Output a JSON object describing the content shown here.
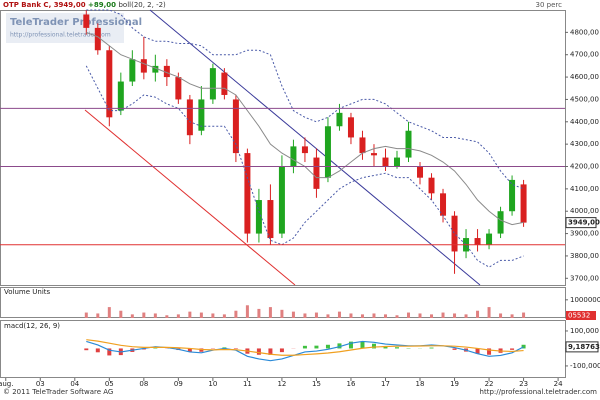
{
  "header": {
    "symbol": "OTP Bank C",
    "last": "3949,00",
    "change": "+89,00",
    "indicator": "boll(20, 2, -2)",
    "interval": "30 perc"
  },
  "watermark": {
    "brand": "TeleTrader Professional",
    "url": "http://professional.teletrader.com"
  },
  "footer": {
    "copyright": "© 2011 TeleTrader Software AG",
    "url": "http://professional.teletrader.com"
  },
  "chart_data": [
    {
      "type": "candlestick",
      "last_label": "3949,00",
      "x": [
        4,
        5,
        6,
        7,
        8,
        9,
        10,
        11,
        12,
        13,
        14,
        15,
        16,
        17,
        18,
        19,
        20,
        21,
        22,
        23,
        24,
        25,
        26,
        27,
        28,
        29,
        30,
        31,
        32,
        33,
        34,
        35,
        36,
        37,
        38,
        39,
        40,
        41,
        42
      ],
      "open": [
        4880,
        4820,
        4720,
        4450,
        4580,
        4680,
        4620,
        4650,
        4600,
        4500,
        4360,
        4500,
        4620,
        4500,
        4260,
        3900,
        4050,
        3900,
        4200,
        4290,
        4240,
        4150,
        4380,
        4420,
        4330,
        4260,
        4240,
        4200,
        4240,
        4200,
        4150,
        4080,
        3980,
        3820,
        3880,
        3850,
        3900,
        4000,
        4120
      ],
      "high": [
        4900,
        4840,
        4740,
        4620,
        4720,
        4780,
        4700,
        4680,
        4620,
        4520,
        4560,
        4660,
        4640,
        4520,
        4280,
        4100,
        4120,
        4250,
        4320,
        4330,
        4280,
        4420,
        4480,
        4440,
        4360,
        4300,
        4280,
        4270,
        4400,
        4220,
        4170,
        4100,
        4000,
        3920,
        3920,
        3920,
        4020,
        4160,
        4140
      ],
      "low": [
        4790,
        4700,
        4380,
        4430,
        4560,
        4590,
        4580,
        4560,
        4480,
        4300,
        4340,
        4480,
        4500,
        4220,
        3860,
        3860,
        3850,
        3880,
        4170,
        4220,
        4060,
        4130,
        4360,
        4300,
        4230,
        4200,
        4180,
        4190,
        4220,
        4120,
        4050,
        3950,
        3720,
        3790,
        3820,
        3830,
        3880,
        3980,
        3930
      ],
      "close": [
        4820,
        4720,
        4420,
        4580,
        4680,
        4620,
        4650,
        4600,
        4500,
        4340,
        4500,
        4640,
        4520,
        4260,
        3900,
        4050,
        3880,
        4200,
        4290,
        4260,
        4100,
        4380,
        4440,
        4330,
        4260,
        4250,
        4200,
        4240,
        4360,
        4150,
        4080,
        3980,
        3820,
        3880,
        3850,
        3900,
        4000,
        4140,
        3949
      ],
      "up_color": "#1fa51f",
      "down_color": "#d92020",
      "bollinger": [
        {
          "color": "#4a5aa8",
          "dashed": true,
          "values": [
            4900,
            4900,
            4900,
            4880,
            4820,
            4780,
            4760,
            4760,
            4750,
            4750,
            4740,
            4700,
            4700,
            4700,
            4720,
            4720,
            4700,
            4560,
            4450,
            4420,
            4400,
            4420,
            4460,
            4480,
            4500,
            4500,
            4480,
            4440,
            4400,
            4380,
            4360,
            4330,
            4330,
            4320,
            4310,
            4260,
            4180,
            4120,
            4100
          ]
        },
        {
          "color": "#8a8a8a",
          "dashed": false,
          "values": [
            4800,
            4780,
            4740,
            4700,
            4680,
            4660,
            4640,
            4620,
            4600,
            4570,
            4550,
            4550,
            4550,
            4520,
            4450,
            4380,
            4300,
            4260,
            4230,
            4200,
            4150,
            4150,
            4180,
            4220,
            4260,
            4280,
            4290,
            4280,
            4280,
            4270,
            4250,
            4220,
            4180,
            4120,
            4050,
            4000,
            3960,
            3940,
            3950
          ]
        },
        {
          "color": "#4a5aa8",
          "dashed": true,
          "values": [
            4650,
            4550,
            4450,
            4450,
            4480,
            4520,
            4510,
            4480,
            4460,
            4400,
            4380,
            4380,
            4380,
            4300,
            4150,
            4000,
            3870,
            3850,
            3880,
            3950,
            4000,
            4050,
            4100,
            4130,
            4150,
            4160,
            4170,
            4150,
            4150,
            4100,
            4050,
            3980,
            3900,
            3850,
            3780,
            3750,
            3780,
            3780,
            3800
          ]
        }
      ],
      "hlines": [
        {
          "value": 4460,
          "color": "#8b4a8b"
        },
        {
          "value": 4200,
          "color": "#8b4a8b"
        },
        {
          "value": 3850,
          "color": "#e03030"
        }
      ],
      "xlim": [
        -3.5,
        45.6
      ],
      "ylim": [
        3670,
        4900
      ],
      "yticks": [
        {
          "value": 4800,
          "label": "4800,00"
        },
        {
          "value": 4700,
          "label": "4700,00"
        },
        {
          "value": 4600,
          "label": "4600,00"
        },
        {
          "value": 4500,
          "label": "4500,00"
        },
        {
          "value": 4400,
          "label": "4400,00"
        },
        {
          "value": 4300,
          "label": "4300,00"
        },
        {
          "value": 4200,
          "label": "4200,00"
        },
        {
          "value": 4100,
          "label": "4100,00"
        },
        {
          "value": 4000,
          "label": "4000,00"
        },
        {
          "value": 3900,
          "label": "3900,00"
        },
        {
          "value": 3800,
          "label": "3800,00"
        },
        {
          "value": 3700,
          "label": "3700,00"
        }
      ]
    },
    {
      "type": "bar",
      "title": "Volume Units",
      "color": "#e08080",
      "last_label": "05532",
      "x": [
        4,
        5,
        6,
        7,
        8,
        9,
        10,
        11,
        12,
        13,
        14,
        15,
        16,
        17,
        18,
        19,
        20,
        21,
        22,
        23,
        24,
        25,
        26,
        27,
        28,
        29,
        30,
        31,
        32,
        33,
        34,
        35,
        36,
        37,
        38,
        39,
        40,
        41,
        42
      ],
      "values": [
        300000,
        250000,
        600000,
        400000,
        200000,
        300000,
        250000,
        150000,
        200000,
        350000,
        300000,
        250000,
        200000,
        400000,
        700000,
        500000,
        600000,
        450000,
        350000,
        250000,
        300000,
        200000,
        350000,
        250000,
        200000,
        250000,
        200000,
        150000,
        300000,
        250000,
        200000,
        300000,
        250000,
        200000,
        400000,
        600000,
        250000,
        200000,
        300000
      ],
      "xlim": [
        -3.5,
        45.6
      ],
      "ylim": [
        0,
        1650000
      ],
      "yticks": [
        1000000,
        0
      ]
    },
    {
      "type": "macd",
      "title": "macd(12, 26, 9)",
      "last_label": "9,18763",
      "x": [
        4,
        5,
        6,
        7,
        8,
        9,
        10,
        11,
        12,
        13,
        14,
        15,
        16,
        17,
        18,
        19,
        20,
        21,
        22,
        23,
        24,
        25,
        26,
        27,
        28,
        29,
        30,
        31,
        32,
        33,
        34,
        35,
        36,
        37,
        38,
        39,
        40,
        41,
        42
      ],
      "series": [
        {
          "color": "#2a8ad8",
          "values": [
            40,
            20,
            -10,
            -20,
            -10,
            0,
            10,
            5,
            -5,
            -20,
            -25,
            -10,
            0,
            -10,
            -45,
            -60,
            -70,
            -60,
            -40,
            -20,
            -15,
            -5,
            10,
            30,
            40,
            35,
            25,
            20,
            15,
            15,
            20,
            15,
            5,
            -10,
            -30,
            -45,
            -40,
            -25,
            9
          ]
        },
        {
          "color": "#f0a020",
          "values": [
            50,
            42,
            30,
            18,
            10,
            6,
            6,
            6,
            4,
            0,
            -6,
            -8,
            -6,
            -7,
            -15,
            -24,
            -33,
            -39,
            -39,
            -35,
            -31,
            -26,
            -19,
            -9,
            1,
            8,
            11,
            13,
            13,
            14,
            15,
            15,
            13,
            8,
            0,
            -9,
            -15,
            -17,
            -12
          ]
        }
      ],
      "histogram": [
        -10,
        -22,
        -40,
        -38,
        -20,
        -6,
        4,
        -1,
        -9,
        -20,
        -19,
        -2,
        6,
        -3,
        -30,
        -36,
        -37,
        -21,
        -1,
        15,
        16,
        21,
        29,
        39,
        39,
        27,
        14,
        7,
        2,
        1,
        5,
        0,
        -8,
        -18,
        -30,
        -36,
        -25,
        -8,
        21
      ],
      "pos_color": "#40c040",
      "neg_color": "#e04040",
      "xlim": [
        -3.5,
        45.6
      ],
      "ylim": [
        -169,
        157
      ],
      "yticks": [
        {
          "value": 100,
          "label": "100,000"
        },
        {
          "value": 0,
          "label": "0,000"
        },
        {
          "value": -100,
          "label": "-100,000"
        }
      ],
      "xticks": [
        {
          "value": -3,
          "label": "aug."
        },
        {
          "value": 0,
          "label": "03"
        },
        {
          "value": 3,
          "label": "04"
        },
        {
          "value": 6,
          "label": "05"
        },
        {
          "value": 9,
          "label": "08"
        },
        {
          "value": 12,
          "label": "09"
        },
        {
          "value": 15,
          "label": "10"
        },
        {
          "value": 18,
          "label": "11"
        },
        {
          "value": 21,
          "label": "12"
        },
        {
          "value": 24,
          "label": "15"
        },
        {
          "value": 27,
          "label": "16"
        },
        {
          "value": 30,
          "label": "17"
        },
        {
          "value": 33,
          "label": "18"
        },
        {
          "value": 36,
          "label": "19"
        },
        {
          "value": 39,
          "label": "22"
        },
        {
          "value": 42,
          "label": "23"
        },
        {
          "value": 45,
          "label": "24"
        }
      ]
    }
  ]
}
